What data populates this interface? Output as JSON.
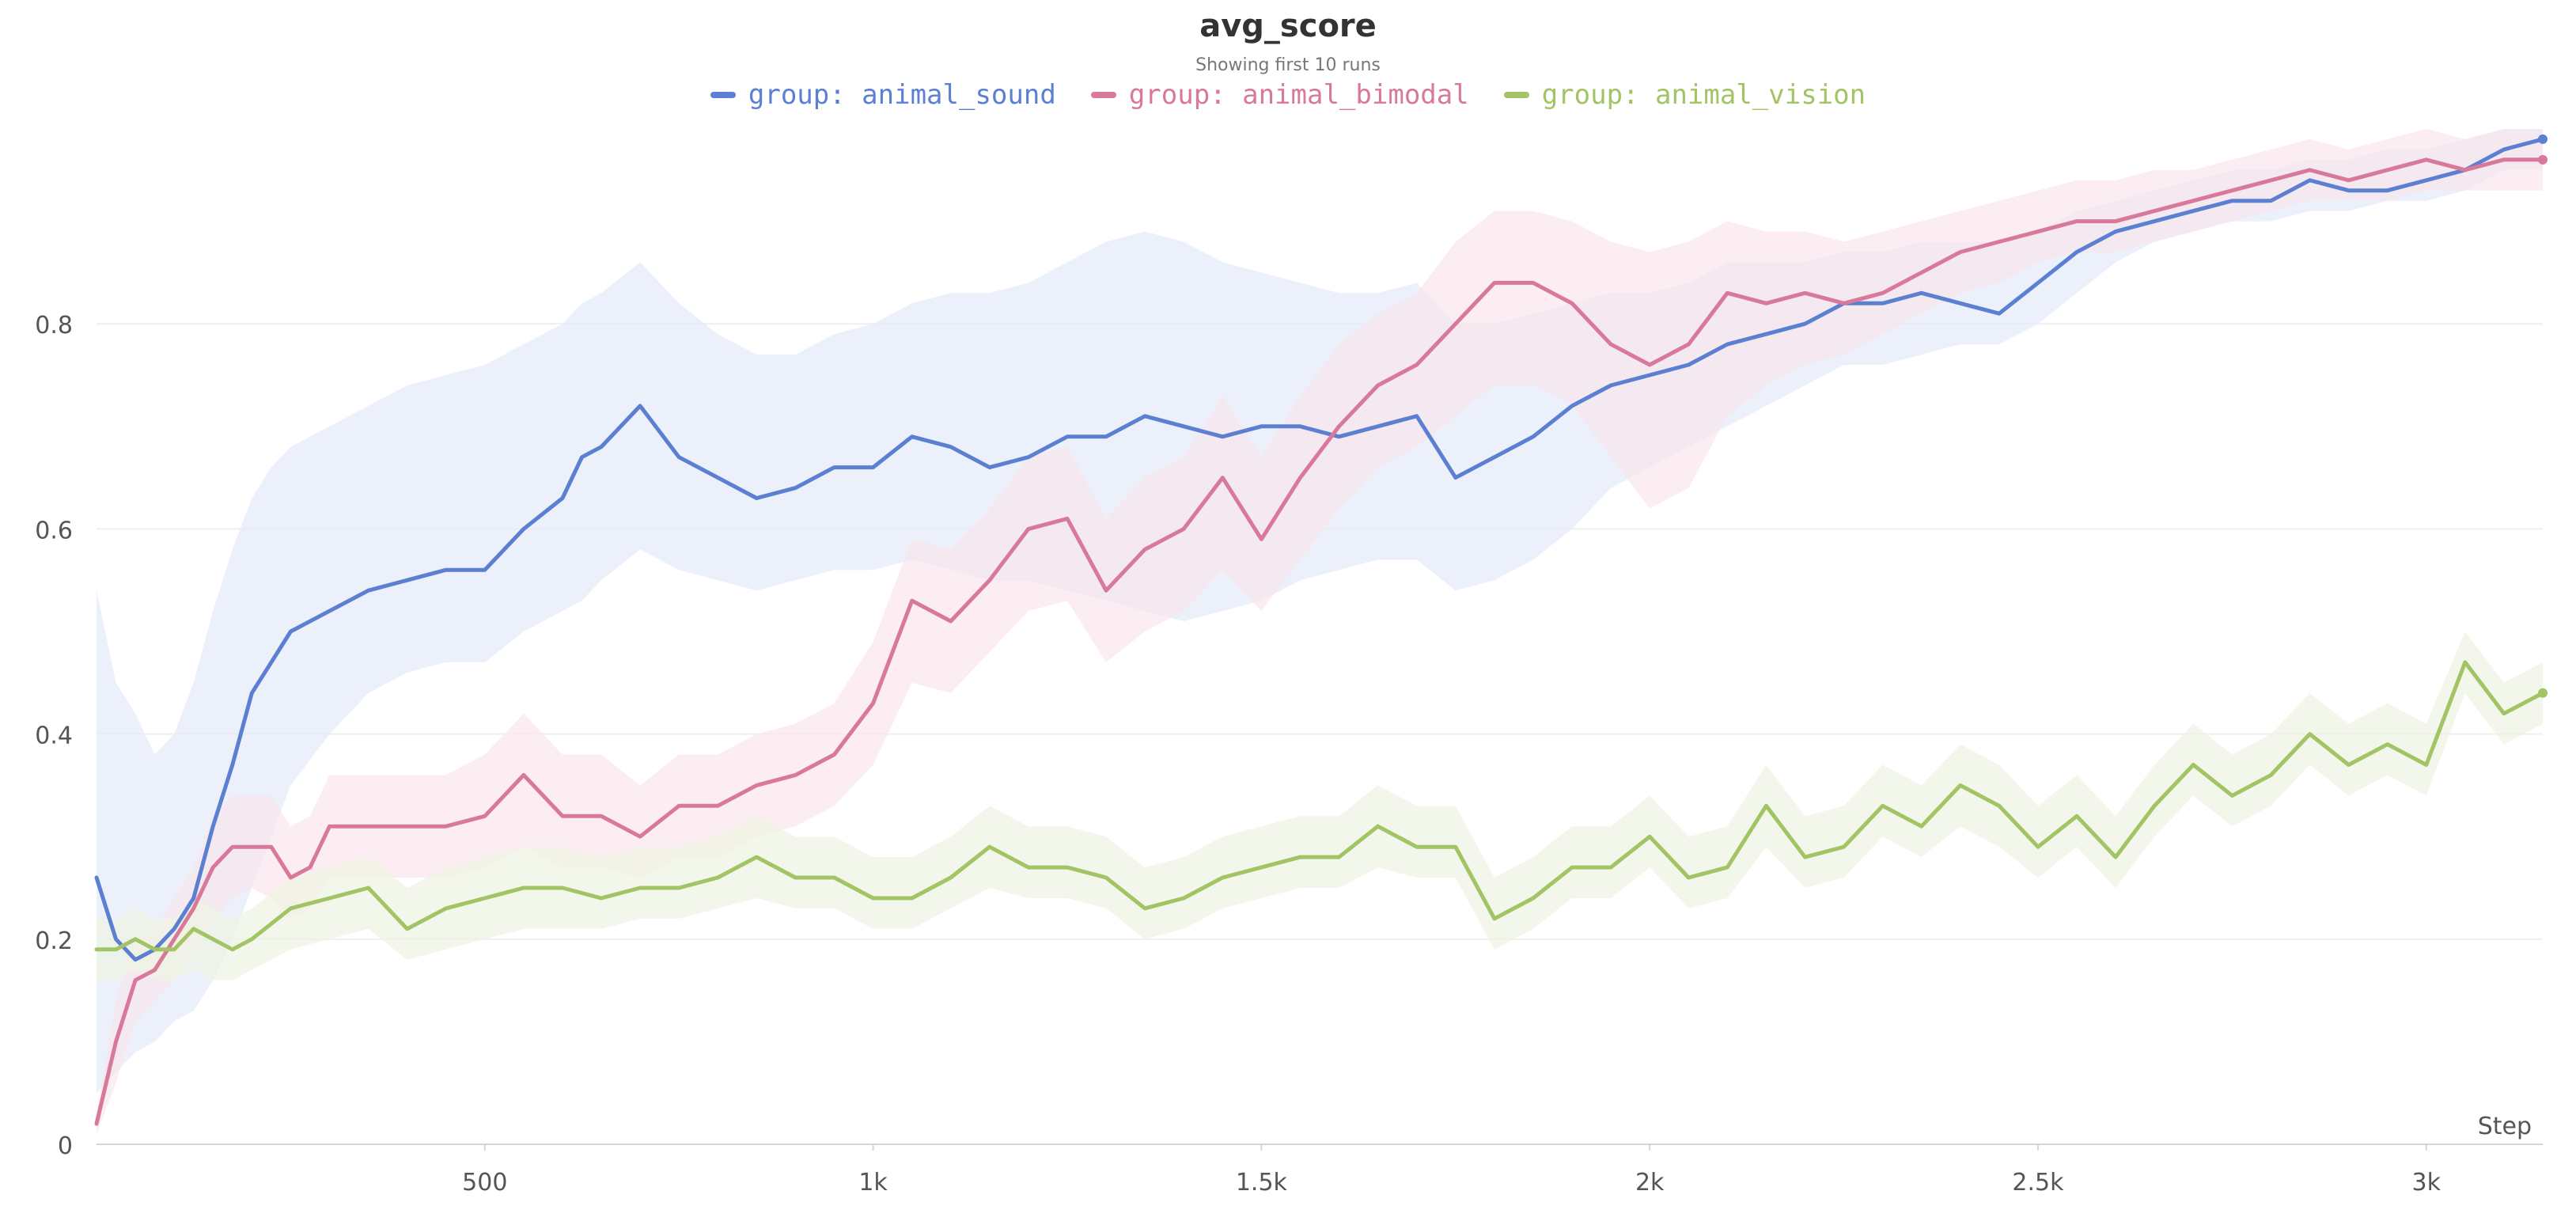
{
  "chart_data": {
    "type": "line",
    "title": "avg_score",
    "subtitle": "Showing first 10 runs",
    "xlabel": "Step",
    "xlim": [
      0,
      3150
    ],
    "ylim": [
      0,
      1.0
    ],
    "x_ticks": [
      500,
      1000,
      1500,
      2000,
      2500,
      3000
    ],
    "x_tick_labels": [
      "500",
      "1k",
      "1.5k",
      "2k",
      "2.5k",
      "3k"
    ],
    "y_ticks": [
      0,
      0.2,
      0.4,
      0.6,
      0.8
    ],
    "y_tick_labels": [
      "0",
      "0.2",
      "0.4",
      "0.6",
      "0.8"
    ],
    "grid": "horizontal",
    "legend": "top-center",
    "series": [
      {
        "name": "group: animal_sound",
        "color": "#5b7fd1",
        "band_color": "#e3eaf8",
        "x": [
          0,
          25,
          50,
          75,
          100,
          125,
          150,
          175,
          200,
          225,
          250,
          300,
          350,
          400,
          450,
          500,
          550,
          600,
          625,
          650,
          700,
          750,
          800,
          850,
          900,
          950,
          1000,
          1050,
          1100,
          1150,
          1200,
          1250,
          1300,
          1350,
          1400,
          1450,
          1500,
          1550,
          1600,
          1650,
          1700,
          1750,
          1800,
          1850,
          1900,
          1950,
          2000,
          2050,
          2100,
          2150,
          2200,
          2250,
          2300,
          2350,
          2400,
          2450,
          2500,
          2550,
          2600,
          2650,
          2700,
          2750,
          2800,
          2850,
          2900,
          2950,
          3000,
          3050,
          3100,
          3150
        ],
        "y": [
          0.26,
          0.2,
          0.18,
          0.19,
          0.21,
          0.24,
          0.31,
          0.37,
          0.44,
          0.47,
          0.5,
          0.52,
          0.54,
          0.55,
          0.56,
          0.56,
          0.6,
          0.63,
          0.67,
          0.68,
          0.72,
          0.67,
          0.65,
          0.63,
          0.64,
          0.66,
          0.66,
          0.69,
          0.68,
          0.66,
          0.67,
          0.69,
          0.69,
          0.71,
          0.7,
          0.69,
          0.7,
          0.7,
          0.69,
          0.7,
          0.71,
          0.65,
          0.67,
          0.69,
          0.72,
          0.74,
          0.75,
          0.76,
          0.78,
          0.79,
          0.8,
          0.82,
          0.82,
          0.83,
          0.82,
          0.81,
          0.84,
          0.87,
          0.89,
          0.9,
          0.91,
          0.92,
          0.92,
          0.94,
          0.93,
          0.93,
          0.94,
          0.95,
          0.97,
          0.98
        ],
        "lower": [
          0.05,
          0.07,
          0.09,
          0.1,
          0.12,
          0.13,
          0.16,
          0.2,
          0.25,
          0.3,
          0.35,
          0.4,
          0.44,
          0.46,
          0.47,
          0.47,
          0.5,
          0.52,
          0.53,
          0.55,
          0.58,
          0.56,
          0.55,
          0.54,
          0.55,
          0.56,
          0.56,
          0.57,
          0.56,
          0.55,
          0.55,
          0.54,
          0.53,
          0.52,
          0.51,
          0.52,
          0.53,
          0.55,
          0.56,
          0.57,
          0.57,
          0.54,
          0.55,
          0.57,
          0.6,
          0.64,
          0.66,
          0.68,
          0.7,
          0.72,
          0.74,
          0.76,
          0.76,
          0.77,
          0.78,
          0.78,
          0.8,
          0.83,
          0.86,
          0.88,
          0.89,
          0.9,
          0.9,
          0.91,
          0.91,
          0.92,
          0.92,
          0.93,
          0.95,
          0.95
        ],
        "upper": [
          0.54,
          0.45,
          0.42,
          0.38,
          0.4,
          0.45,
          0.52,
          0.58,
          0.63,
          0.66,
          0.68,
          0.7,
          0.72,
          0.74,
          0.75,
          0.76,
          0.78,
          0.8,
          0.82,
          0.83,
          0.86,
          0.82,
          0.79,
          0.77,
          0.77,
          0.79,
          0.8,
          0.82,
          0.83,
          0.83,
          0.84,
          0.86,
          0.88,
          0.89,
          0.88,
          0.86,
          0.85,
          0.84,
          0.83,
          0.83,
          0.84,
          0.8,
          0.8,
          0.81,
          0.82,
          0.83,
          0.83,
          0.84,
          0.86,
          0.86,
          0.86,
          0.87,
          0.87,
          0.88,
          0.88,
          0.88,
          0.89,
          0.91,
          0.92,
          0.93,
          0.94,
          0.95,
          0.95,
          0.96,
          0.96,
          0.97,
          0.97,
          0.98,
          0.99,
          0.99
        ]
      },
      {
        "name": "group: animal_bimodal",
        "color": "#d9799a",
        "band_color": "#f9e6ed",
        "x": [
          0,
          25,
          50,
          75,
          100,
          125,
          150,
          175,
          200,
          225,
          250,
          275,
          300,
          350,
          400,
          450,
          500,
          550,
          600,
          650,
          700,
          750,
          800,
          850,
          900,
          950,
          1000,
          1050,
          1100,
          1150,
          1200,
          1250,
          1300,
          1350,
          1400,
          1450,
          1500,
          1550,
          1600,
          1650,
          1700,
          1750,
          1800,
          1850,
          1900,
          1950,
          2000,
          2050,
          2100,
          2150,
          2200,
          2250,
          2300,
          2350,
          2400,
          2450,
          2500,
          2550,
          2600,
          2650,
          2700,
          2750,
          2800,
          2850,
          2900,
          2950,
          3000,
          3050,
          3100,
          3150
        ],
        "y": [
          0.02,
          0.1,
          0.16,
          0.17,
          0.2,
          0.23,
          0.27,
          0.29,
          0.29,
          0.29,
          0.26,
          0.27,
          0.31,
          0.31,
          0.31,
          0.31,
          0.32,
          0.36,
          0.32,
          0.32,
          0.3,
          0.33,
          0.33,
          0.35,
          0.36,
          0.38,
          0.43,
          0.53,
          0.51,
          0.55,
          0.6,
          0.61,
          0.54,
          0.58,
          0.6,
          0.65,
          0.59,
          0.65,
          0.7,
          0.74,
          0.76,
          0.8,
          0.84,
          0.84,
          0.82,
          0.78,
          0.76,
          0.78,
          0.83,
          0.82,
          0.83,
          0.82,
          0.83,
          0.85,
          0.87,
          0.88,
          0.89,
          0.9,
          0.9,
          0.91,
          0.92,
          0.93,
          0.94,
          0.95,
          0.94,
          0.95,
          0.96,
          0.95,
          0.96,
          0.96
        ],
        "lower": [
          0.01,
          0.06,
          0.12,
          0.14,
          0.16,
          0.19,
          0.22,
          0.24,
          0.25,
          0.24,
          0.22,
          0.23,
          0.26,
          0.26,
          0.26,
          0.26,
          0.27,
          0.29,
          0.27,
          0.27,
          0.26,
          0.28,
          0.28,
          0.3,
          0.31,
          0.33,
          0.37,
          0.45,
          0.44,
          0.48,
          0.52,
          0.53,
          0.47,
          0.5,
          0.52,
          0.56,
          0.52,
          0.57,
          0.62,
          0.66,
          0.68,
          0.71,
          0.74,
          0.74,
          0.72,
          0.67,
          0.62,
          0.64,
          0.71,
          0.74,
          0.76,
          0.77,
          0.79,
          0.81,
          0.83,
          0.84,
          0.86,
          0.87,
          0.87,
          0.88,
          0.89,
          0.9,
          0.91,
          0.92,
          0.92,
          0.92,
          0.93,
          0.93,
          0.93,
          0.93
        ],
        "upper": [
          0.03,
          0.14,
          0.2,
          0.21,
          0.24,
          0.27,
          0.32,
          0.34,
          0.34,
          0.34,
          0.31,
          0.32,
          0.36,
          0.36,
          0.36,
          0.36,
          0.38,
          0.42,
          0.38,
          0.38,
          0.35,
          0.38,
          0.38,
          0.4,
          0.41,
          0.43,
          0.49,
          0.59,
          0.58,
          0.62,
          0.67,
          0.68,
          0.61,
          0.65,
          0.67,
          0.73,
          0.67,
          0.73,
          0.78,
          0.81,
          0.83,
          0.88,
          0.91,
          0.91,
          0.9,
          0.88,
          0.87,
          0.88,
          0.9,
          0.89,
          0.89,
          0.88,
          0.89,
          0.9,
          0.91,
          0.92,
          0.93,
          0.94,
          0.94,
          0.95,
          0.95,
          0.96,
          0.97,
          0.98,
          0.97,
          0.98,
          0.99,
          0.98,
          0.99,
          0.99
        ]
      },
      {
        "name": "group: animal_vision",
        "color": "#a2c464",
        "band_color": "#eef4e2",
        "x": [
          0,
          25,
          50,
          75,
          100,
          125,
          150,
          175,
          200,
          250,
          300,
          350,
          400,
          450,
          500,
          550,
          600,
          650,
          700,
          750,
          800,
          850,
          900,
          950,
          1000,
          1050,
          1100,
          1150,
          1200,
          1250,
          1300,
          1350,
          1400,
          1450,
          1500,
          1550,
          1600,
          1650,
          1700,
          1750,
          1800,
          1850,
          1900,
          1950,
          2000,
          2050,
          2100,
          2150,
          2200,
          2250,
          2300,
          2350,
          2400,
          2450,
          2500,
          2550,
          2600,
          2650,
          2700,
          2750,
          2800,
          2850,
          2900,
          2950,
          3000,
          3050,
          3100,
          3150
        ],
        "y": [
          0.19,
          0.19,
          0.2,
          0.19,
          0.19,
          0.21,
          0.2,
          0.19,
          0.2,
          0.23,
          0.24,
          0.25,
          0.21,
          0.23,
          0.24,
          0.25,
          0.25,
          0.24,
          0.25,
          0.25,
          0.26,
          0.28,
          0.26,
          0.26,
          0.24,
          0.24,
          0.26,
          0.29,
          0.27,
          0.27,
          0.26,
          0.23,
          0.24,
          0.26,
          0.27,
          0.28,
          0.28,
          0.31,
          0.29,
          0.29,
          0.22,
          0.24,
          0.27,
          0.27,
          0.3,
          0.26,
          0.27,
          0.33,
          0.28,
          0.29,
          0.33,
          0.31,
          0.35,
          0.33,
          0.29,
          0.32,
          0.28,
          0.33,
          0.37,
          0.34,
          0.36,
          0.4,
          0.37,
          0.39,
          0.37,
          0.47,
          0.42,
          0.44
        ],
        "lower": [
          0.16,
          0.16,
          0.17,
          0.16,
          0.16,
          0.17,
          0.16,
          0.16,
          0.17,
          0.19,
          0.2,
          0.21,
          0.18,
          0.19,
          0.2,
          0.21,
          0.21,
          0.21,
          0.22,
          0.22,
          0.23,
          0.24,
          0.23,
          0.23,
          0.21,
          0.21,
          0.23,
          0.25,
          0.24,
          0.24,
          0.23,
          0.2,
          0.21,
          0.23,
          0.24,
          0.25,
          0.25,
          0.27,
          0.26,
          0.26,
          0.19,
          0.21,
          0.24,
          0.24,
          0.27,
          0.23,
          0.24,
          0.29,
          0.25,
          0.26,
          0.3,
          0.28,
          0.31,
          0.29,
          0.26,
          0.29,
          0.25,
          0.3,
          0.34,
          0.31,
          0.33,
          0.37,
          0.34,
          0.36,
          0.34,
          0.44,
          0.39,
          0.41
        ],
        "upper": [
          0.22,
          0.22,
          0.23,
          0.22,
          0.22,
          0.24,
          0.23,
          0.22,
          0.23,
          0.26,
          0.27,
          0.28,
          0.25,
          0.27,
          0.28,
          0.29,
          0.29,
          0.28,
          0.29,
          0.29,
          0.3,
          0.32,
          0.3,
          0.3,
          0.28,
          0.28,
          0.3,
          0.33,
          0.31,
          0.31,
          0.3,
          0.27,
          0.28,
          0.3,
          0.31,
          0.32,
          0.32,
          0.35,
          0.33,
          0.33,
          0.26,
          0.28,
          0.31,
          0.31,
          0.34,
          0.3,
          0.31,
          0.37,
          0.32,
          0.33,
          0.37,
          0.35,
          0.39,
          0.37,
          0.33,
          0.36,
          0.32,
          0.37,
          0.41,
          0.38,
          0.4,
          0.44,
          0.41,
          0.43,
          0.41,
          0.5,
          0.45,
          0.47
        ]
      }
    ]
  }
}
